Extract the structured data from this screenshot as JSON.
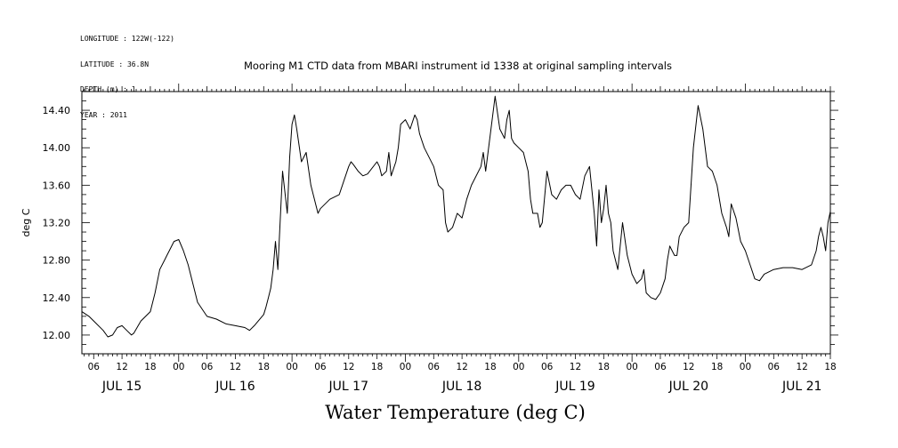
{
  "meta_lines": [
    "LONGITUDE : 122W(-122)",
    "LATITUDE : 36.8N",
    "DEPTH (m) : 1",
    "YEAR : 2011"
  ],
  "chart_data": {
    "type": "line",
    "title": "Mooring M1 CTD data from MBARI instrument id 1338 at original sampling intervals",
    "xlabel": "Water Temperature (deg C)",
    "ylabel": "deg C",
    "ylim": [
      11.8,
      14.6
    ],
    "yticks": [
      "12.00",
      "12.40",
      "12.80",
      "13.20",
      "13.60",
      "14.00",
      "14.40"
    ],
    "xlim_hours": [
      3.5,
      162
    ],
    "x_hour_labels": [
      "06",
      "12",
      "18",
      "00",
      "06",
      "12",
      "18",
      "00",
      "06",
      "12",
      "18",
      "00",
      "06",
      "12",
      "18",
      "00",
      "06",
      "12",
      "18",
      "00",
      "06",
      "12",
      "18",
      "00",
      "06",
      "12",
      "18",
      "00",
      "06",
      "12",
      "18"
    ],
    "x_day_labels": [
      "JUL 15",
      "JUL 16",
      "JUL 17",
      "JUL 18",
      "JUL 19",
      "JUL 20",
      "JUL 21"
    ],
    "series": [
      {
        "x": [
          3.5,
          5,
          6,
          8,
          9,
          10,
          11,
          12,
          13,
          14,
          14.5,
          16,
          18,
          19,
          20,
          21,
          21.5,
          22,
          23,
          24,
          25,
          26,
          27,
          28,
          30,
          32,
          34,
          36,
          38,
          39,
          40,
          42,
          42.5,
          43,
          43.5,
          44,
          44.5,
          45,
          46,
          47,
          47.5,
          48,
          48.5,
          49,
          50,
          51,
          52,
          53,
          53.5,
          54,
          56,
          58,
          60,
          60.5,
          61,
          62,
          63,
          64,
          66,
          66.5,
          67,
          68,
          68.5,
          69,
          70,
          70.5,
          71,
          72,
          73,
          74,
          74.5,
          75,
          76,
          78,
          79,
          80,
          80.5,
          81,
          82,
          83,
          84,
          84.5,
          85,
          86,
          88,
          88.5,
          89,
          90,
          91,
          92,
          93,
          93.5,
          94,
          94.5,
          95,
          96,
          97,
          98,
          98.5,
          99,
          100,
          100.5,
          101,
          102,
          103,
          104,
          105,
          106,
          107,
          108,
          109,
          110,
          111,
          112,
          112.5,
          113,
          113.5,
          114,
          114.5,
          115,
          115.5,
          116,
          117,
          118,
          119,
          120,
          121,
          122,
          122.5,
          123,
          124,
          125,
          126,
          127,
          127.5,
          128,
          128.5,
          129,
          129.5,
          130,
          131,
          132,
          133,
          134,
          135,
          136,
          137,
          138,
          139,
          140,
          140.5,
          141,
          142,
          143,
          144,
          145,
          146,
          147,
          148,
          150,
          152,
          154,
          156,
          158,
          159,
          159.5,
          160,
          160.5,
          161,
          161.5,
          162
        ],
        "y": [
          12.25,
          12.2,
          12.15,
          12.05,
          11.98,
          12.0,
          12.08,
          12.1,
          12.05,
          12.0,
          12.02,
          12.15,
          12.25,
          12.45,
          12.7,
          12.8,
          12.85,
          12.9,
          13.0,
          13.02,
          12.9,
          12.75,
          12.55,
          12.35,
          12.2,
          12.17,
          12.12,
          12.1,
          12.08,
          12.05,
          12.1,
          12.22,
          12.3,
          12.4,
          12.5,
          12.7,
          13.0,
          12.7,
          13.75,
          13.3,
          13.9,
          14.25,
          14.35,
          14.2,
          13.85,
          13.95,
          13.6,
          13.4,
          13.3,
          13.35,
          13.45,
          13.5,
          13.8,
          13.85,
          13.82,
          13.75,
          13.7,
          13.72,
          13.85,
          13.8,
          13.7,
          13.75,
          13.95,
          13.7,
          13.85,
          14.0,
          14.25,
          14.3,
          14.2,
          14.35,
          14.3,
          14.15,
          14.0,
          13.8,
          13.6,
          13.55,
          13.2,
          13.1,
          13.15,
          13.3,
          13.25,
          13.35,
          13.45,
          13.6,
          13.8,
          13.95,
          13.75,
          14.15,
          14.55,
          14.2,
          14.1,
          14.3,
          14.4,
          14.1,
          14.05,
          14.0,
          13.95,
          13.75,
          13.45,
          13.3,
          13.3,
          13.15,
          13.2,
          13.75,
          13.5,
          13.45,
          13.55,
          13.6,
          13.6,
          13.5,
          13.45,
          13.7,
          13.8,
          13.3,
          12.95,
          13.55,
          13.2,
          13.35,
          13.6,
          13.3,
          13.2,
          12.9,
          12.7,
          13.2,
          12.85,
          12.65,
          12.55,
          12.6,
          12.7,
          12.45,
          12.4,
          12.38,
          12.45,
          12.6,
          12.8,
          12.95,
          12.9,
          12.85,
          12.85,
          13.05,
          13.15,
          13.2,
          14.0,
          14.45,
          14.2,
          13.8,
          13.75,
          13.6,
          13.3,
          13.15,
          13.05,
          13.4,
          13.25,
          13.0,
          12.9,
          12.75,
          12.6,
          12.58,
          12.65,
          12.7,
          12.72,
          12.72,
          12.7,
          12.75,
          12.9,
          13.05,
          13.15,
          13.05,
          12.9,
          13.2,
          13.32
        ]
      }
    ]
  }
}
